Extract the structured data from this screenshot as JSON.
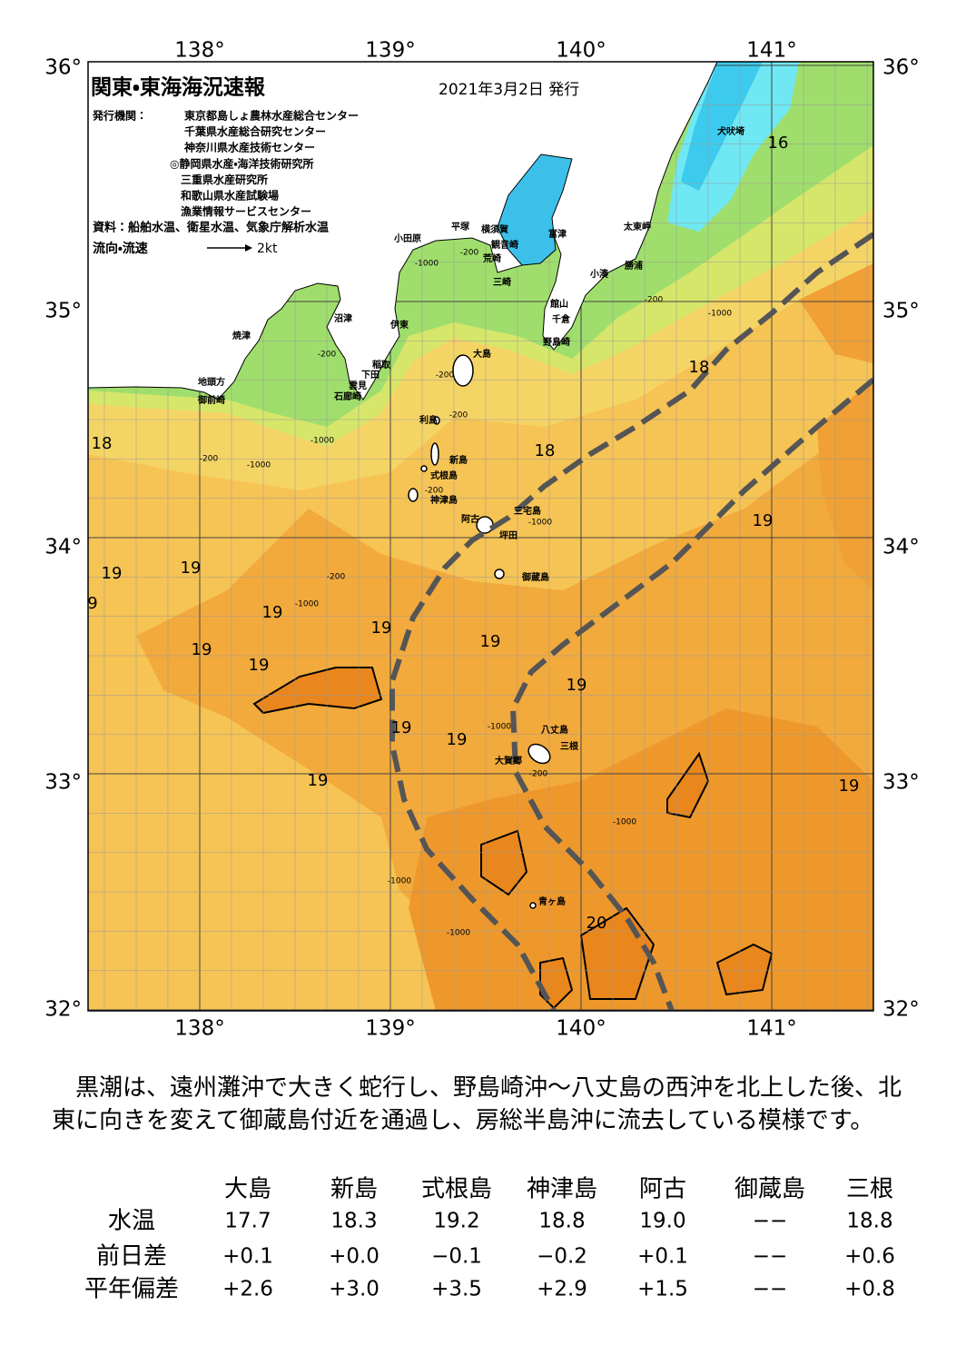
{
  "header": {
    "title": "関東・東海海況速報",
    "date": "2021年3月2日 発行",
    "publisher_label": "発行機関：",
    "publishers": [
      "東京都島しょ農林水産総合センター",
      "千葉県水産総合研究センター",
      "神奈川県水産技術センター",
      "◎静岡県水産・海洋技術研究所",
      "三重県水産研究所",
      "和歌山県水産試験場",
      "漁業情報サービスセンター"
    ],
    "source": "資料：船舶水温、衛星水温、気象庁解析水温",
    "legend_label": "流向・流速",
    "legend_speed": "2kt"
  },
  "map": {
    "lon_labels": [
      "138°",
      "139°",
      "140°",
      "141°"
    ],
    "lat_labels": [
      "36°",
      "35°",
      "34°",
      "33°",
      "32°"
    ],
    "places": [
      "犬吠埼",
      "太東岬",
      "勝浦",
      "小湊",
      "館山",
      "千倉",
      "野島崎",
      "富津",
      "横須賀",
      "観音崎",
      "荒崎",
      "三崎",
      "平塚",
      "小田原",
      "沼津",
      "伊東",
      "焼津",
      "稲取",
      "下田",
      "雲見",
      "石廊崎",
      "地頭方",
      "御前崎",
      "大島",
      "利島",
      "新島",
      "式根島",
      "神津島",
      "三宅島",
      "阿古",
      "坪田",
      "御蔵島",
      "八丈島",
      "三根",
      "大賀郷",
      "青ヶ島"
    ],
    "temperature_labels": [
      "16",
      "18",
      "18",
      "18",
      "19",
      "19",
      "19",
      "9",
      "19",
      "19",
      "19",
      "19",
      "19",
      "19",
      "19",
      "19",
      "19",
      "19",
      "20"
    ],
    "depth_labels": [
      "-200",
      "-1000",
      "-200",
      "-200",
      "-200",
      "-1000",
      "-200",
      "-1000",
      "-200",
      "-1000",
      "-200",
      "-1000",
      "-200",
      "-1000",
      "-1000",
      "-200",
      "-1000",
      "-1000",
      "-1000"
    ]
  },
  "description": "黒潮は、遠州灘沖で大きく蛇行し、野島崎沖～八丈島の西沖を北上した後、北東に向きを変えて御蔵島付近を通過し、房総半島沖に流去している模様です。",
  "table": {
    "columns": [
      "大島",
      "新島",
      "式根島",
      "神津島",
      "阿古",
      "御蔵島",
      "三根"
    ],
    "rows": [
      {
        "label": "水温",
        "values": [
          "17.7",
          "18.3",
          "19.2",
          "18.8",
          "19.0",
          "−−",
          "18.8"
        ]
      },
      {
        "label": "前日差",
        "values": [
          "+0.1",
          "+0.0",
          "−0.1",
          "−0.2",
          "+0.1",
          "−−",
          "+0.6"
        ]
      },
      {
        "label": "平年偏差",
        "values": [
          "+2.6",
          "+3.0",
          "+3.5",
          "+2.9",
          "+1.5",
          "−−",
          "+0.8"
        ]
      }
    ]
  }
}
